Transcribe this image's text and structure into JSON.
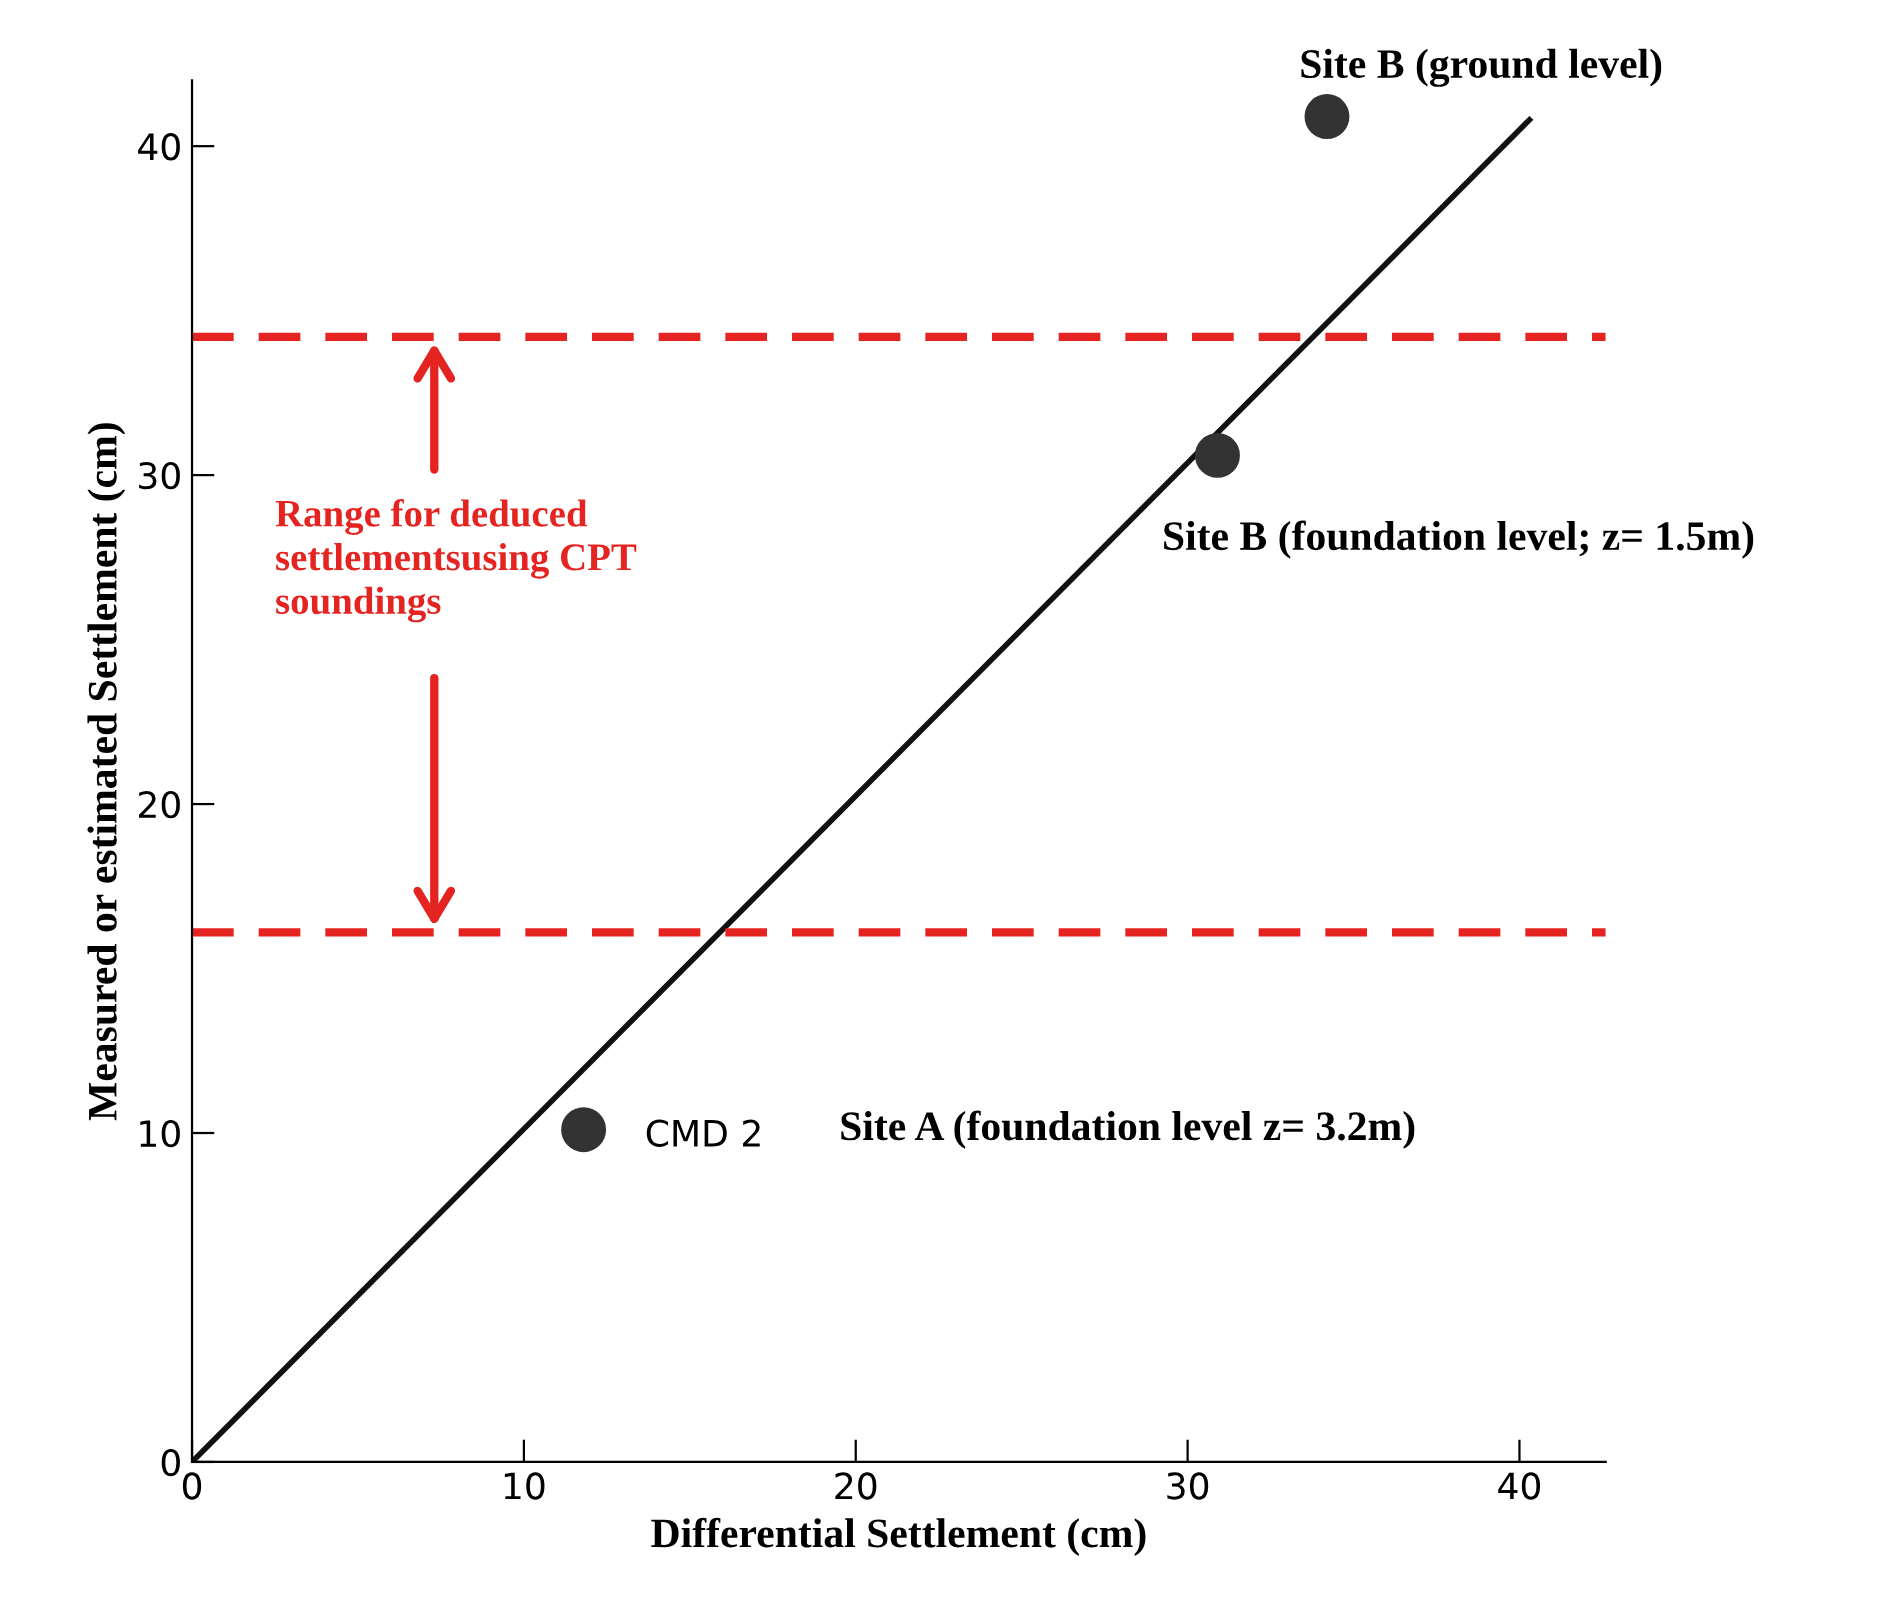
{
  "chart_data": {
    "type": "scatter",
    "xlabel": "Differential Settlement (cm)",
    "ylabel": "Measured or estimated Settlement (cm)",
    "xlim": [
      0,
      42.6
    ],
    "ylim": [
      0,
      42
    ],
    "xticks": [
      0,
      10,
      20,
      30,
      40
    ],
    "yticks": [
      0,
      10,
      20,
      30,
      40
    ],
    "grid": false,
    "legend": false,
    "marker": "circle",
    "series": [
      {
        "color": "#333333",
        "x": [
          11.8,
          30.9,
          34.2
        ],
        "values": [
          10.1,
          30.6,
          40.9
        ]
      },
      {
        "type": "line",
        "color": "#111111",
        "line_style": "solid",
        "marker": "none",
        "x": [
          0,
          40.3
        ],
        "values": [
          0,
          40.8
        ]
      }
    ],
    "ref_lines": [
      {
        "axis": "y",
        "value": 34.2,
        "label": null,
        "color": "#e52421",
        "line_style": "dashed"
      },
      {
        "axis": "y",
        "value": 16.1,
        "label": null,
        "color": "#e52421",
        "line_style": "dashed"
      }
    ],
    "annotations": [
      {
        "text": "Site B (ground level)",
        "x": 34.2,
        "y": 40.9
      },
      {
        "text": "Site B (foundation level; z= 1.5m)",
        "x": 30.9,
        "y": 30.6
      },
      {
        "text": "CMD 2",
        "x": 11.8,
        "y": 10.1
      },
      "Site A (foundation level z= 3.2m)",
      "Range for deduced\nsettlementsusing CPT\nsoundings"
    ]
  }
}
